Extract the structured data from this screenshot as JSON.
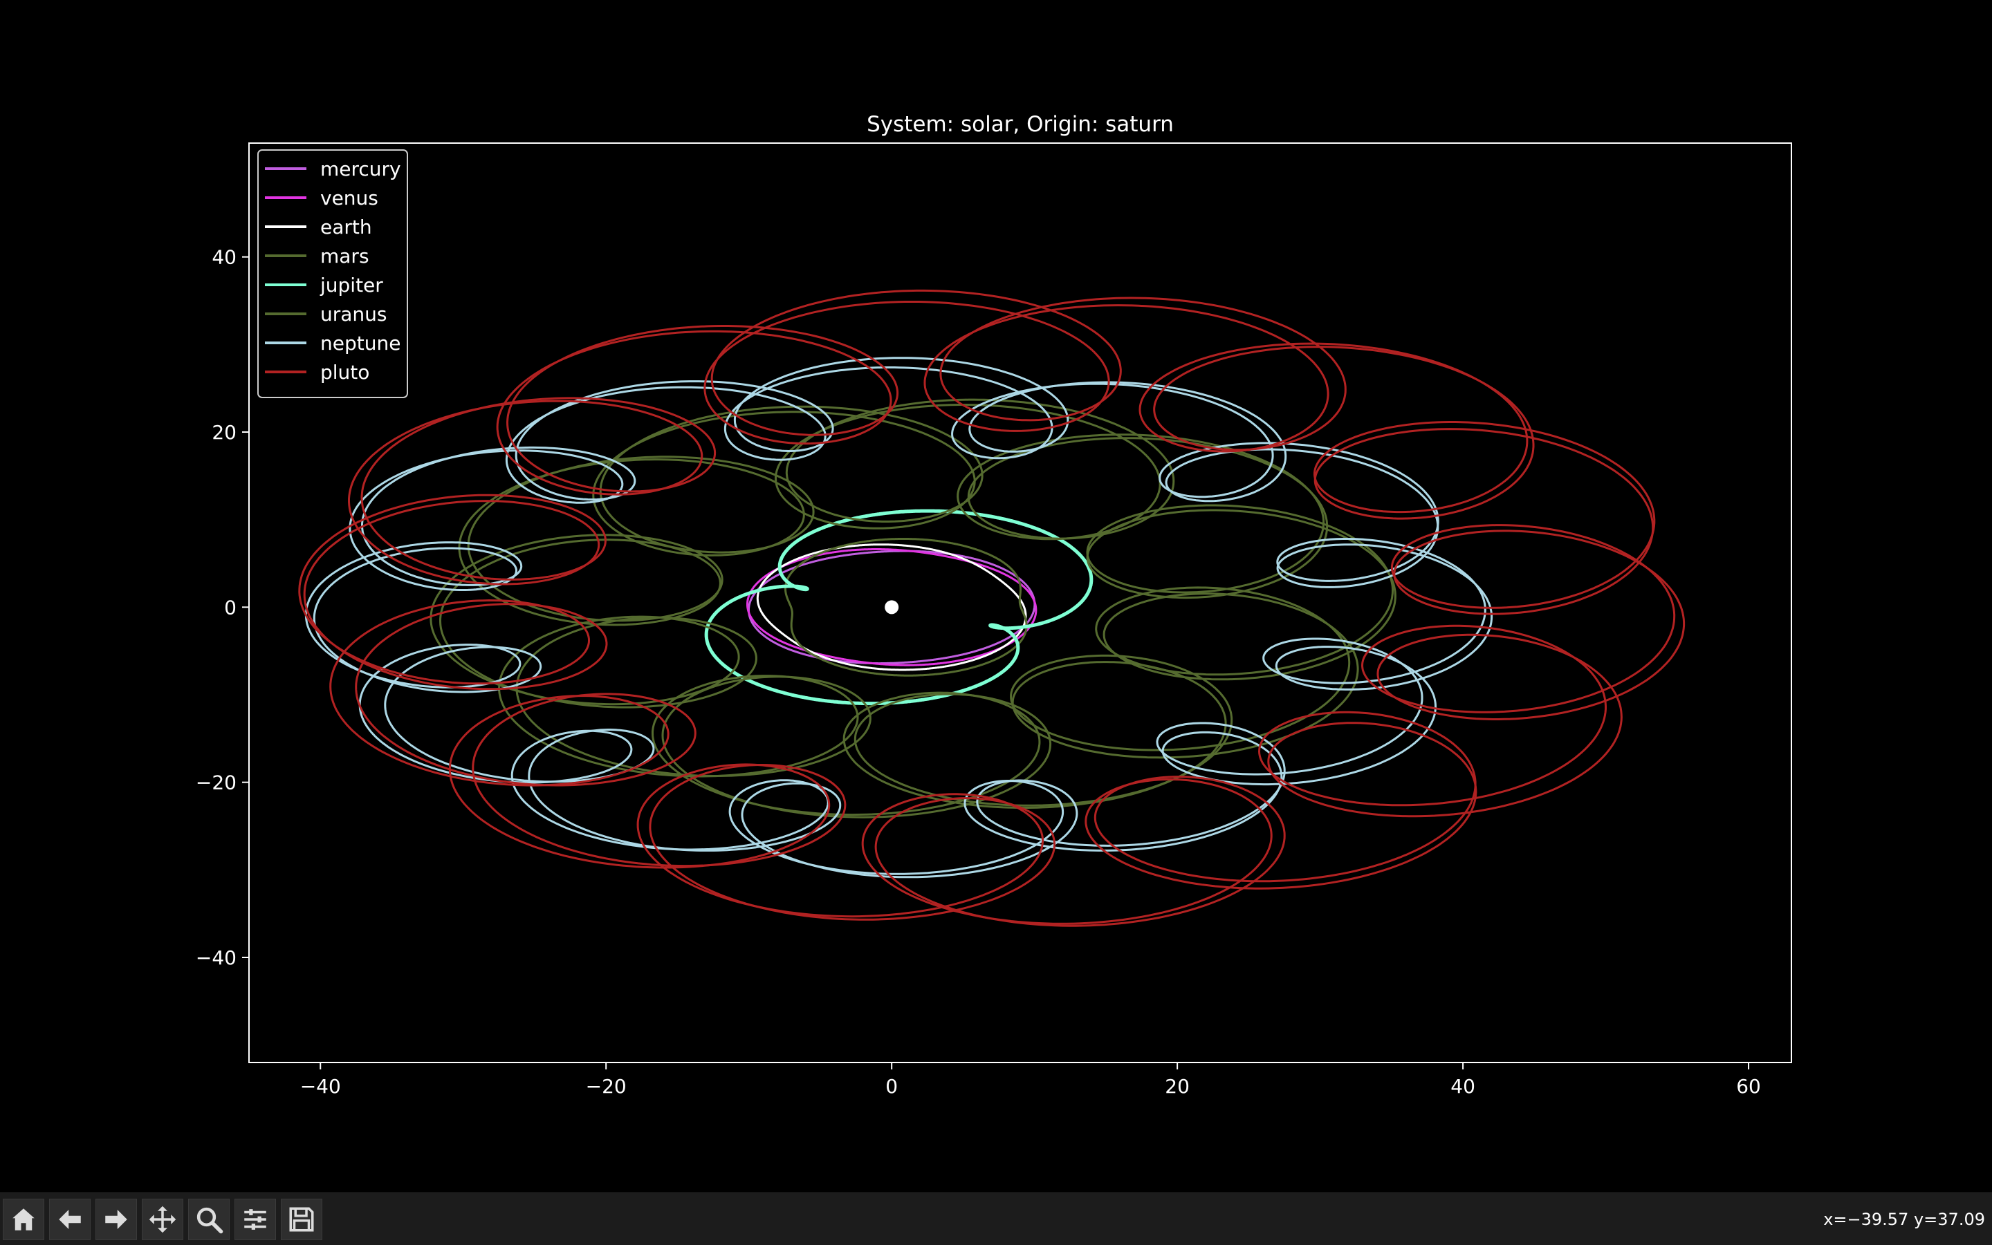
{
  "chart_data": {
    "type": "line",
    "title": "System: solar, Origin: saturn",
    "xlabel": "",
    "ylabel": "",
    "xlim": [
      -45,
      63
    ],
    "ylim": [
      -52,
      53
    ],
    "xticks": [
      -40,
      -20,
      0,
      20,
      40,
      60
    ],
    "yticks": [
      -40,
      -20,
      0,
      20,
      40
    ],
    "xtick_labels": [
      "−40",
      "−20",
      "0",
      "20",
      "40",
      "60"
    ],
    "ytick_labels": [
      "−40",
      "−20",
      "0",
      "20",
      "40"
    ],
    "grid": false,
    "legend_position": "top-left",
    "background": "#000000",
    "origin_marker": {
      "x": 0,
      "y": 0,
      "color": "#ffffff"
    },
    "series": [
      {
        "name": "mercury",
        "color": "#c15ee0",
        "center": [
          0,
          0
        ],
        "radius": 9.5,
        "loop": 0.5,
        "loops": 3,
        "ratio": 0.71
      },
      {
        "name": "venus",
        "color": "#e235e2",
        "center": [
          0,
          0
        ],
        "radius": 9.6,
        "loop": 0.8,
        "loops": 3,
        "ratio": 0.71
      },
      {
        "name": "earth",
        "color": "#ffffff",
        "center": [
          0,
          0
        ],
        "radius": 9.5,
        "loop": 1.0,
        "loops": 3,
        "ratio": 0.71
      },
      {
        "name": "mars",
        "color": "#556b2f",
        "center": [
          1,
          0
        ],
        "radius": 9.5,
        "loop": 1.5,
        "loops": 3,
        "ratio": 0.71
      },
      {
        "name": "jupiter",
        "color": "#7fffd4",
        "center": [
          0.5,
          0
        ],
        "radius": 11.5,
        "loop": 4.2,
        "loops": 3,
        "ratio": 0.71
      },
      {
        "name": "uranus",
        "color": "#556b2f",
        "center": [
          1.5,
          0
        ],
        "radius": 23.5,
        "loop": 10.0,
        "loops": 11,
        "ratio": 0.71
      },
      {
        "name": "neptune",
        "color": "#add8e6",
        "center": [
          0.5,
          -1
        ],
        "radius": 34.0,
        "loop": 7.0,
        "loops": 13,
        "ratio": 0.71
      },
      {
        "name": "pluto",
        "color": "#b22222",
        "center": [
          7,
          0
        ],
        "radius": 38.0,
        "loop": 10.0,
        "loops": 15,
        "ratio": 0.75
      }
    ]
  },
  "toolbar": {
    "buttons": [
      {
        "icon": "home-icon"
      },
      {
        "icon": "back-arrow-icon"
      },
      {
        "icon": "forward-arrow-icon"
      },
      {
        "icon": "pan-icon"
      },
      {
        "icon": "zoom-icon"
      },
      {
        "icon": "configure-subplots-icon"
      },
      {
        "icon": "save-icon"
      }
    ],
    "coords": "x=−39.57 y=37.09"
  }
}
